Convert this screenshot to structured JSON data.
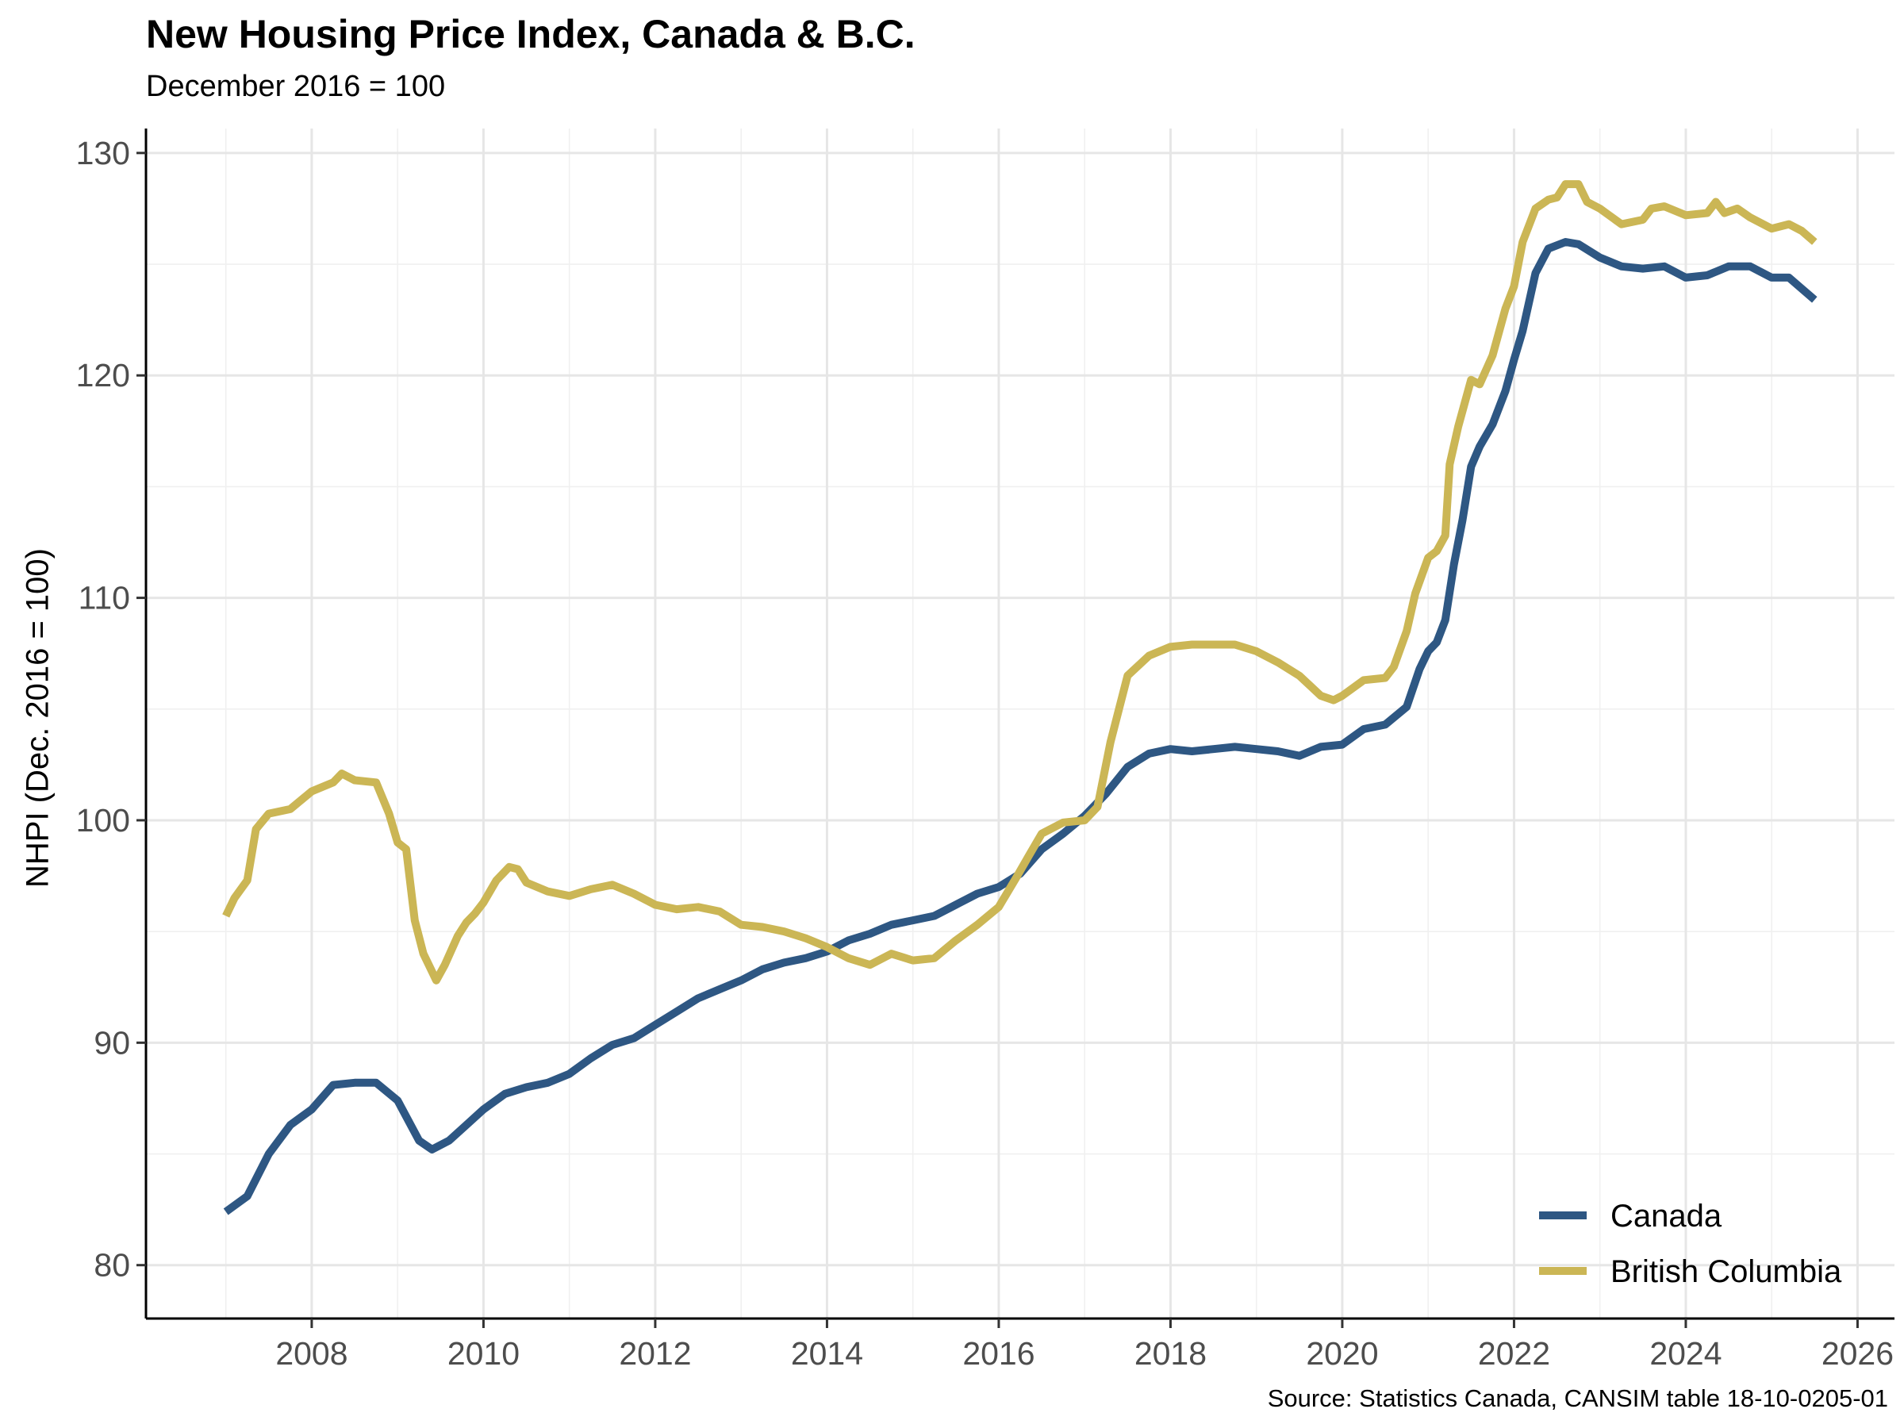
{
  "chart_data": {
    "type": "line",
    "title": "New Housing Price Index, Canada & B.C.",
    "subtitle": "December 2016 = 100",
    "ylabel": "NHPI (Dec. 2016 = 100)",
    "xlabel": "",
    "caption": "Source: Statistics Canada, CANSIM table 18-10-0205-01",
    "x_range": [
      2006.07,
      2026.43
    ],
    "ylim": [
      77.6,
      131.1
    ],
    "x_ticks": [
      2008,
      2010,
      2012,
      2014,
      2016,
      2018,
      2020,
      2022,
      2024,
      2026
    ],
    "x_tick_labels": [
      "2008",
      "2010",
      "2012",
      "2014",
      "2016",
      "2018",
      "2020",
      "2022",
      "2024",
      "2026"
    ],
    "y_ticks": [
      80,
      90,
      100,
      110,
      120,
      130
    ],
    "y_tick_labels": [
      "80",
      "90",
      "100",
      "110",
      "120",
      "130"
    ],
    "grid": true,
    "legend_position": "bottom-right",
    "series": [
      {
        "name": "Canada",
        "color": "#2e5783",
        "points": [
          [
            2007.0,
            82.4
          ],
          [
            2007.25,
            83.1
          ],
          [
            2007.5,
            85.0
          ],
          [
            2007.75,
            86.3
          ],
          [
            2008.0,
            87.0
          ],
          [
            2008.25,
            88.1
          ],
          [
            2008.5,
            88.2
          ],
          [
            2008.75,
            88.2
          ],
          [
            2009.0,
            87.4
          ],
          [
            2009.25,
            85.6
          ],
          [
            2009.4,
            85.2
          ],
          [
            2009.6,
            85.6
          ],
          [
            2009.8,
            86.3
          ],
          [
            2010.0,
            87.0
          ],
          [
            2010.25,
            87.7
          ],
          [
            2010.5,
            88.0
          ],
          [
            2010.75,
            88.2
          ],
          [
            2011.0,
            88.6
          ],
          [
            2011.25,
            89.3
          ],
          [
            2011.5,
            89.9
          ],
          [
            2011.75,
            90.2
          ],
          [
            2012.0,
            90.8
          ],
          [
            2012.25,
            91.4
          ],
          [
            2012.5,
            92.0
          ],
          [
            2012.75,
            92.4
          ],
          [
            2013.0,
            92.8
          ],
          [
            2013.25,
            93.3
          ],
          [
            2013.5,
            93.6
          ],
          [
            2013.75,
            93.8
          ],
          [
            2014.0,
            94.1
          ],
          [
            2014.25,
            94.6
          ],
          [
            2014.5,
            94.9
          ],
          [
            2014.75,
            95.3
          ],
          [
            2015.0,
            95.5
          ],
          [
            2015.25,
            95.7
          ],
          [
            2015.5,
            96.2
          ],
          [
            2015.75,
            96.7
          ],
          [
            2016.0,
            97.0
          ],
          [
            2016.25,
            97.6
          ],
          [
            2016.5,
            98.7
          ],
          [
            2016.75,
            99.4
          ],
          [
            2017.0,
            100.2
          ],
          [
            2017.25,
            101.2
          ],
          [
            2017.5,
            102.4
          ],
          [
            2017.75,
            103.0
          ],
          [
            2018.0,
            103.2
          ],
          [
            2018.25,
            103.1
          ],
          [
            2018.5,
            103.2
          ],
          [
            2018.75,
            103.3
          ],
          [
            2019.0,
            103.2
          ],
          [
            2019.25,
            103.1
          ],
          [
            2019.5,
            102.9
          ],
          [
            2019.75,
            103.3
          ],
          [
            2020.0,
            103.4
          ],
          [
            2020.25,
            104.1
          ],
          [
            2020.5,
            104.3
          ],
          [
            2020.75,
            105.1
          ],
          [
            2020.9,
            106.8
          ],
          [
            2021.0,
            107.6
          ],
          [
            2021.1,
            108.0
          ],
          [
            2021.2,
            109.0
          ],
          [
            2021.3,
            111.5
          ],
          [
            2021.4,
            113.5
          ],
          [
            2021.5,
            115.9
          ],
          [
            2021.6,
            116.8
          ],
          [
            2021.75,
            117.8
          ],
          [
            2021.9,
            119.3
          ],
          [
            2022.0,
            120.7
          ],
          [
            2022.1,
            122.0
          ],
          [
            2022.25,
            124.6
          ],
          [
            2022.4,
            125.7
          ],
          [
            2022.6,
            126.0
          ],
          [
            2022.75,
            125.9
          ],
          [
            2023.0,
            125.3
          ],
          [
            2023.25,
            124.9
          ],
          [
            2023.5,
            124.8
          ],
          [
            2023.75,
            124.9
          ],
          [
            2024.0,
            124.4
          ],
          [
            2024.25,
            124.5
          ],
          [
            2024.5,
            124.9
          ],
          [
            2024.75,
            124.9
          ],
          [
            2025.0,
            124.4
          ],
          [
            2025.2,
            124.4
          ],
          [
            2025.35,
            123.9
          ],
          [
            2025.5,
            123.4
          ]
        ]
      },
      {
        "name": "British Columbia",
        "color": "#cbb655",
        "points": [
          [
            2007.0,
            95.7
          ],
          [
            2007.1,
            96.5
          ],
          [
            2007.25,
            97.3
          ],
          [
            2007.35,
            99.6
          ],
          [
            2007.5,
            100.3
          ],
          [
            2007.75,
            100.5
          ],
          [
            2008.0,
            101.3
          ],
          [
            2008.25,
            101.7
          ],
          [
            2008.35,
            102.1
          ],
          [
            2008.5,
            101.8
          ],
          [
            2008.75,
            101.7
          ],
          [
            2008.9,
            100.3
          ],
          [
            2009.0,
            99.0
          ],
          [
            2009.1,
            98.7
          ],
          [
            2009.2,
            95.5
          ],
          [
            2009.3,
            94.0
          ],
          [
            2009.4,
            93.2
          ],
          [
            2009.45,
            92.8
          ],
          [
            2009.55,
            93.5
          ],
          [
            2009.7,
            94.8
          ],
          [
            2009.8,
            95.4
          ],
          [
            2009.9,
            95.8
          ],
          [
            2010.0,
            96.3
          ],
          [
            2010.15,
            97.3
          ],
          [
            2010.3,
            97.9
          ],
          [
            2010.4,
            97.8
          ],
          [
            2010.5,
            97.2
          ],
          [
            2010.75,
            96.8
          ],
          [
            2011.0,
            96.6
          ],
          [
            2011.25,
            96.9
          ],
          [
            2011.5,
            97.1
          ],
          [
            2011.75,
            96.7
          ],
          [
            2012.0,
            96.2
          ],
          [
            2012.25,
            96.0
          ],
          [
            2012.5,
            96.1
          ],
          [
            2012.75,
            95.9
          ],
          [
            2013.0,
            95.3
          ],
          [
            2013.25,
            95.2
          ],
          [
            2013.5,
            95.0
          ],
          [
            2013.75,
            94.7
          ],
          [
            2014.0,
            94.3
          ],
          [
            2014.25,
            93.8
          ],
          [
            2014.5,
            93.5
          ],
          [
            2014.75,
            94.0
          ],
          [
            2015.0,
            93.7
          ],
          [
            2015.25,
            93.8
          ],
          [
            2015.5,
            94.6
          ],
          [
            2015.75,
            95.3
          ],
          [
            2016.0,
            96.1
          ],
          [
            2016.2,
            97.4
          ],
          [
            2016.35,
            98.4
          ],
          [
            2016.5,
            99.4
          ],
          [
            2016.75,
            99.9
          ],
          [
            2017.0,
            100.0
          ],
          [
            2017.15,
            100.6
          ],
          [
            2017.3,
            103.5
          ],
          [
            2017.5,
            106.5
          ],
          [
            2017.75,
            107.4
          ],
          [
            2018.0,
            107.8
          ],
          [
            2018.25,
            107.9
          ],
          [
            2018.5,
            107.9
          ],
          [
            2018.75,
            107.9
          ],
          [
            2019.0,
            107.6
          ],
          [
            2019.25,
            107.1
          ],
          [
            2019.5,
            106.5
          ],
          [
            2019.75,
            105.6
          ],
          [
            2019.9,
            105.4
          ],
          [
            2020.0,
            105.6
          ],
          [
            2020.25,
            106.3
          ],
          [
            2020.5,
            106.4
          ],
          [
            2020.6,
            106.9
          ],
          [
            2020.75,
            108.5
          ],
          [
            2020.85,
            110.2
          ],
          [
            2021.0,
            111.8
          ],
          [
            2021.1,
            112.1
          ],
          [
            2021.2,
            112.8
          ],
          [
            2021.25,
            116.0
          ],
          [
            2021.35,
            117.7
          ],
          [
            2021.5,
            119.8
          ],
          [
            2021.6,
            119.6
          ],
          [
            2021.75,
            120.9
          ],
          [
            2021.9,
            123.0
          ],
          [
            2022.0,
            124.0
          ],
          [
            2022.1,
            126.0
          ],
          [
            2022.25,
            127.5
          ],
          [
            2022.4,
            127.9
          ],
          [
            2022.5,
            128.0
          ],
          [
            2022.6,
            128.6
          ],
          [
            2022.75,
            128.6
          ],
          [
            2022.85,
            127.8
          ],
          [
            2023.0,
            127.5
          ],
          [
            2023.25,
            126.8
          ],
          [
            2023.5,
            127.0
          ],
          [
            2023.6,
            127.5
          ],
          [
            2023.75,
            127.6
          ],
          [
            2024.0,
            127.2
          ],
          [
            2024.25,
            127.3
          ],
          [
            2024.35,
            127.8
          ],
          [
            2024.45,
            127.3
          ],
          [
            2024.6,
            127.5
          ],
          [
            2024.75,
            127.1
          ],
          [
            2025.0,
            126.6
          ],
          [
            2025.2,
            126.8
          ],
          [
            2025.35,
            126.5
          ],
          [
            2025.5,
            126.0
          ]
        ]
      }
    ]
  }
}
